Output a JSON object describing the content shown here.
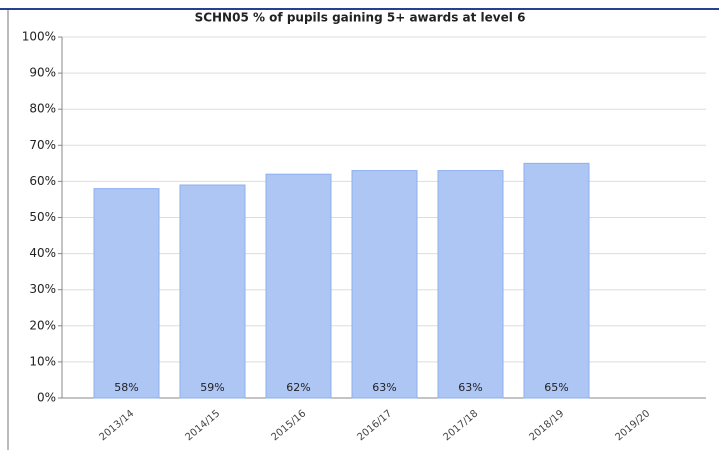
{
  "chart_data": {
    "type": "bar",
    "title": "SCHN05 % of pupils gaining 5+ awards at level 6",
    "categories": [
      "2013/14",
      "2014/15",
      "2015/16",
      "2016/17",
      "2017/18",
      "2018/19",
      "2019/20"
    ],
    "values": [
      58,
      59,
      62,
      63,
      63,
      65,
      null
    ],
    "value_labels": [
      "58%",
      "59%",
      "62%",
      "63%",
      "63%",
      "65%",
      null
    ],
    "color": "#aec6f4",
    "ylim": [
      0,
      100
    ],
    "yticks": [
      {
        "value": 0,
        "label": "0%"
      },
      {
        "value": 10,
        "label": "10%"
      },
      {
        "value": 20,
        "label": "20%"
      },
      {
        "value": 30,
        "label": "30%"
      },
      {
        "value": 40,
        "label": "40%"
      },
      {
        "value": 50,
        "label": "50%"
      },
      {
        "value": 60,
        "label": "60%"
      },
      {
        "value": 70,
        "label": "70%"
      },
      {
        "value": 80,
        "label": "80%"
      },
      {
        "value": 90,
        "label": "90%"
      },
      {
        "value": 100,
        "label": "100%"
      }
    ],
    "grid": true
  }
}
